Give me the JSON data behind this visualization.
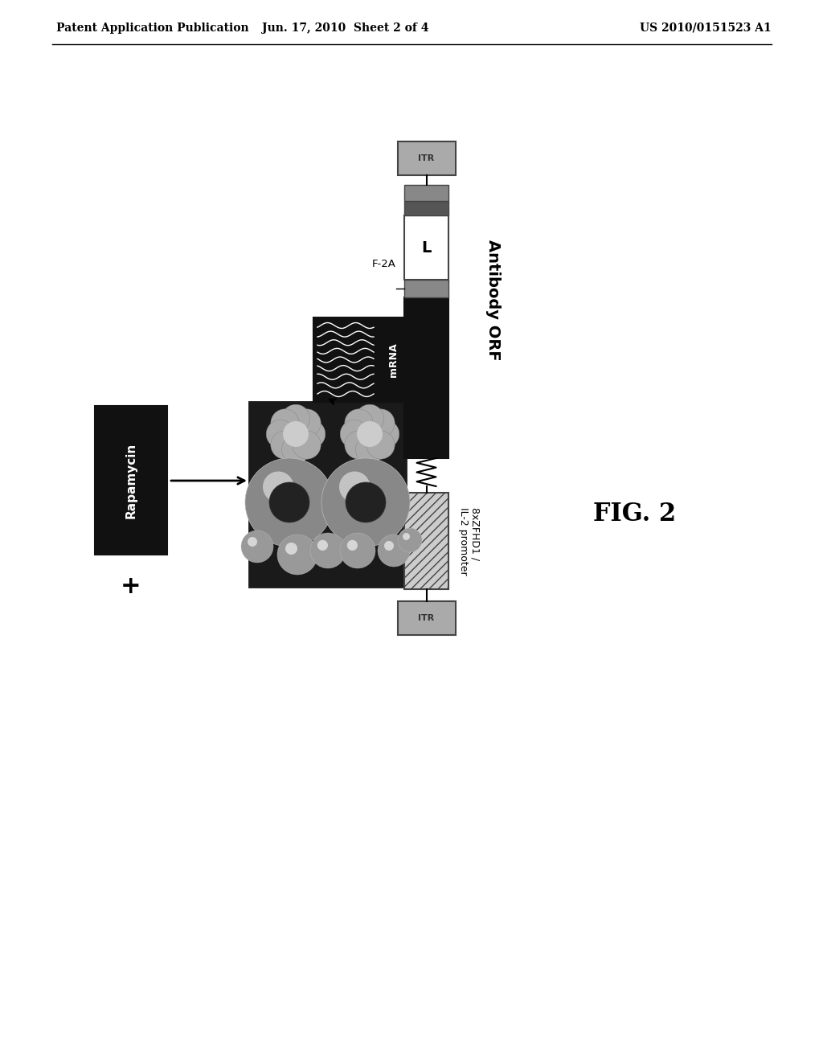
{
  "header_left": "Patent Application Publication",
  "header_mid": "Jun. 17, 2010  Sheet 2 of 4",
  "header_right": "US 2010/0151523 A1",
  "fig_label": "FIG. 2",
  "rapamycin_label": "Rapamycin",
  "plus_label": "+",
  "mrna_label": "mRNA",
  "f2a_label": "F-2A",
  "antibody_orf_label": "Antibody ORF",
  "promoter_label": "8xZFHD1 /\nIL-2 promoter",
  "itr_label": "ITR",
  "l_label": "L",
  "bg_color": "#ffffff",
  "black_box_color": "#111111",
  "gray_itr_color": "#aaaaaa"
}
